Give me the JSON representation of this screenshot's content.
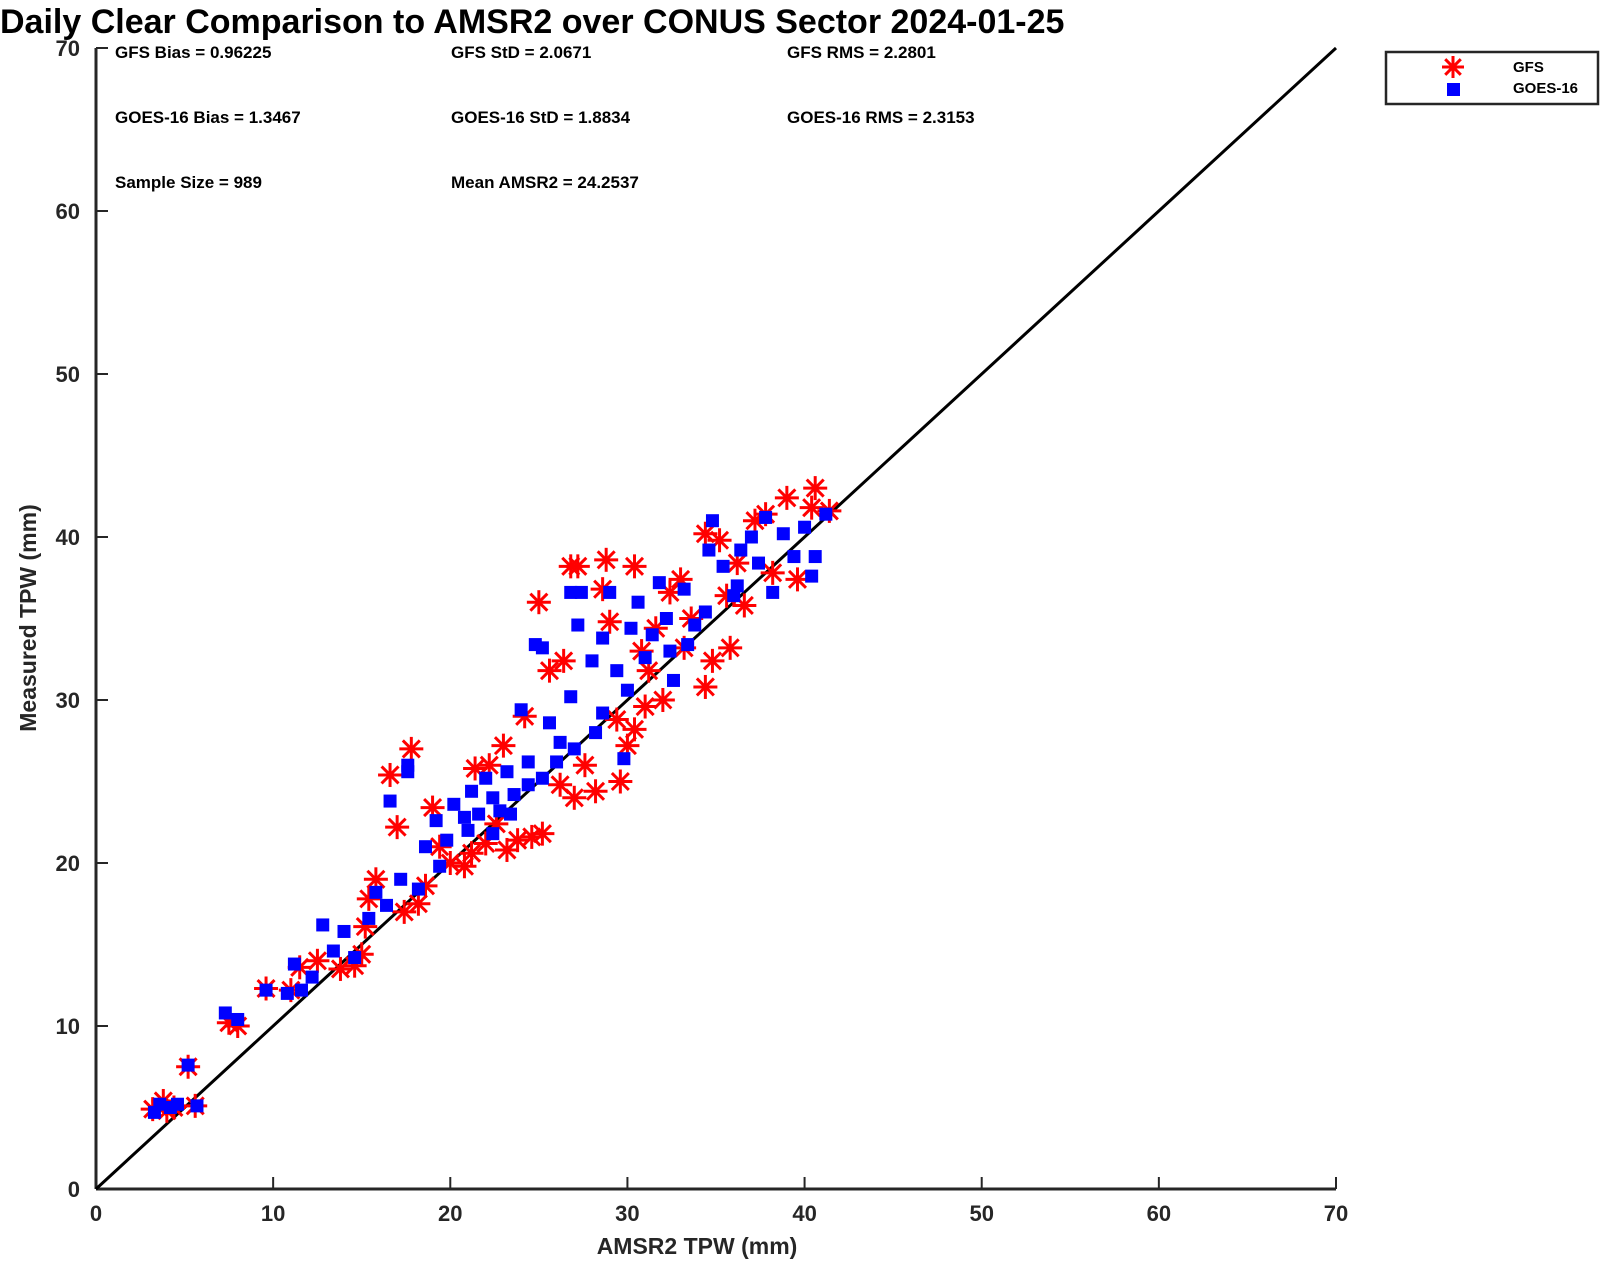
{
  "chart_data": {
    "type": "scatter",
    "title": "Daily Clear Comparison to AMSR2 over CONUS Sector 2024-01-25",
    "xlabel": "AMSR2 TPW (mm)",
    "ylabel": "Measured TPW (mm)",
    "xlim": [
      0,
      70
    ],
    "ylim": [
      0,
      70
    ],
    "xticks": [
      "0",
      "10",
      "20",
      "30",
      "40",
      "50",
      "60",
      "70"
    ],
    "yticks": [
      "0",
      "10",
      "20",
      "30",
      "40",
      "50",
      "60",
      "70"
    ],
    "grid": false,
    "legend_position": "outside-top-right",
    "reference_line": {
      "x": [
        0,
        70
      ],
      "y": [
        0,
        70
      ],
      "color": "#000000"
    },
    "stats": [
      "GFS Bias = 0.96225",
      "GFS StD = 2.0671",
      "GFS RMS = 2.2801",
      "GOES-16 Bias = 1.3467",
      "GOES-16 StD = 1.8834",
      "GOES-16 RMS = 2.3153",
      "Sample Size = 989",
      "Mean AMSR2 = 24.2537"
    ],
    "series": [
      {
        "name": "GFS",
        "marker": "asterisk",
        "color": "#ff0000",
        "points": [
          [
            3.2,
            4.9
          ],
          [
            3.8,
            5.4
          ],
          [
            4.4,
            5.0
          ],
          [
            5.2,
            7.5
          ],
          [
            5.6,
            5.1
          ],
          [
            4.0,
            4.8
          ],
          [
            7.5,
            10.2
          ],
          [
            8.0,
            10.0
          ],
          [
            9.6,
            12.3
          ],
          [
            11.0,
            12.2
          ],
          [
            11.5,
            13.6
          ],
          [
            12.5,
            14.0
          ],
          [
            13.8,
            13.5
          ],
          [
            14.6,
            13.7
          ],
          [
            15.0,
            14.4
          ],
          [
            15.2,
            16.1
          ],
          [
            15.4,
            17.8
          ],
          [
            15.8,
            19.0
          ],
          [
            16.6,
            25.4
          ],
          [
            17.0,
            22.2
          ],
          [
            17.8,
            27.0
          ],
          [
            17.4,
            17.0
          ],
          [
            18.2,
            17.5
          ],
          [
            18.6,
            18.6
          ],
          [
            19.4,
            21.0
          ],
          [
            20.0,
            20.0
          ],
          [
            20.8,
            19.8
          ],
          [
            21.2,
            20.6
          ],
          [
            21.4,
            25.8
          ],
          [
            22.0,
            21.2
          ],
          [
            22.6,
            22.4
          ],
          [
            23.2,
            20.8
          ],
          [
            23.8,
            21.4
          ],
          [
            24.6,
            21.6
          ],
          [
            25.2,
            21.8
          ],
          [
            24.2,
            29.0
          ],
          [
            25.0,
            36.0
          ],
          [
            25.6,
            31.8
          ],
          [
            26.4,
            32.4
          ],
          [
            26.8,
            38.2
          ],
          [
            27.2,
            38.2
          ],
          [
            27.6,
            26.0
          ],
          [
            28.2,
            24.4
          ],
          [
            28.8,
            38.6
          ],
          [
            28.6,
            36.8
          ],
          [
            29.0,
            34.8
          ],
          [
            29.6,
            25.0
          ],
          [
            30.0,
            27.2
          ],
          [
            30.4,
            28.2
          ],
          [
            30.4,
            38.2
          ],
          [
            30.8,
            33.0
          ],
          [
            31.6,
            34.4
          ],
          [
            32.0,
            30.0
          ],
          [
            32.4,
            36.6
          ],
          [
            33.2,
            33.2
          ],
          [
            33.6,
            35.0
          ],
          [
            34.4,
            30.8
          ],
          [
            34.8,
            32.4
          ],
          [
            34.4,
            40.2
          ],
          [
            35.2,
            39.8
          ],
          [
            35.8,
            33.2
          ],
          [
            36.6,
            35.8
          ],
          [
            37.2,
            41.0
          ],
          [
            37.8,
            41.4
          ],
          [
            38.2,
            37.8
          ],
          [
            39.0,
            42.4
          ],
          [
            39.6,
            37.4
          ],
          [
            40.4,
            41.8
          ],
          [
            40.6,
            43.0
          ],
          [
            41.4,
            41.6
          ],
          [
            36.2,
            38.4
          ],
          [
            33.0,
            37.4
          ],
          [
            31.2,
            31.8
          ],
          [
            26.2,
            24.8
          ],
          [
            27.0,
            24.0
          ],
          [
            19.0,
            23.4
          ],
          [
            22.2,
            26.0
          ],
          [
            23.0,
            27.2
          ],
          [
            29.4,
            28.8
          ],
          [
            31.0,
            29.6
          ],
          [
            35.6,
            36.4
          ]
        ]
      },
      {
        "name": "GOES-16",
        "marker": "square",
        "color": "#0000ff",
        "points": [
          [
            3.3,
            4.7
          ],
          [
            3.6,
            5.2
          ],
          [
            4.2,
            5.0
          ],
          [
            4.6,
            5.2
          ],
          [
            5.2,
            7.6
          ],
          [
            5.7,
            5.1
          ],
          [
            7.3,
            10.8
          ],
          [
            8.0,
            10.4
          ],
          [
            9.6,
            12.2
          ],
          [
            10.8,
            12.0
          ],
          [
            11.2,
            13.8
          ],
          [
            11.6,
            12.2
          ],
          [
            12.2,
            13.0
          ],
          [
            12.8,
            16.2
          ],
          [
            13.4,
            14.6
          ],
          [
            14.0,
            15.8
          ],
          [
            14.6,
            14.2
          ],
          [
            15.4,
            16.6
          ],
          [
            15.8,
            18.2
          ],
          [
            16.4,
            17.4
          ],
          [
            16.6,
            23.8
          ],
          [
            17.2,
            19.0
          ],
          [
            17.6,
            26.0
          ],
          [
            17.6,
            25.6
          ],
          [
            18.2,
            18.4
          ],
          [
            18.6,
            21.0
          ],
          [
            19.2,
            22.6
          ],
          [
            19.8,
            21.4
          ],
          [
            20.2,
            23.6
          ],
          [
            20.8,
            22.8
          ],
          [
            21.2,
            24.4
          ],
          [
            21.6,
            23.0
          ],
          [
            22.0,
            25.2
          ],
          [
            22.4,
            24.0
          ],
          [
            22.8,
            23.2
          ],
          [
            23.2,
            25.6
          ],
          [
            23.6,
            24.2
          ],
          [
            24.0,
            29.4
          ],
          [
            24.4,
            26.2
          ],
          [
            24.8,
            33.4
          ],
          [
            25.2,
            33.2
          ],
          [
            25.6,
            28.6
          ],
          [
            26.2,
            27.4
          ],
          [
            26.8,
            30.2
          ],
          [
            26.8,
            36.6
          ],
          [
            27.4,
            36.6
          ],
          [
            27.2,
            34.6
          ],
          [
            28.0,
            32.4
          ],
          [
            28.6,
            33.8
          ],
          [
            29.0,
            36.6
          ],
          [
            29.4,
            31.8
          ],
          [
            29.8,
            26.4
          ],
          [
            30.2,
            34.4
          ],
          [
            30.6,
            36.0
          ],
          [
            31.0,
            32.6
          ],
          [
            31.4,
            34.0
          ],
          [
            31.8,
            37.2
          ],
          [
            32.2,
            35.0
          ],
          [
            32.6,
            31.2
          ],
          [
            33.2,
            36.8
          ],
          [
            33.8,
            34.6
          ],
          [
            34.4,
            35.4
          ],
          [
            34.6,
            39.2
          ],
          [
            34.8,
            41.0
          ],
          [
            35.4,
            38.2
          ],
          [
            36.0,
            36.4
          ],
          [
            36.4,
            39.2
          ],
          [
            37.0,
            40.0
          ],
          [
            37.4,
            38.4
          ],
          [
            37.8,
            41.2
          ],
          [
            38.2,
            36.6
          ],
          [
            38.8,
            40.2
          ],
          [
            39.4,
            38.8
          ],
          [
            40.0,
            40.6
          ],
          [
            40.6,
            38.8
          ],
          [
            41.2,
            41.4
          ],
          [
            40.4,
            37.6
          ],
          [
            36.2,
            37.0
          ],
          [
            33.4,
            33.4
          ],
          [
            28.6,
            29.2
          ],
          [
            27.0,
            27.0
          ],
          [
            22.4,
            21.8
          ],
          [
            25.2,
            25.2
          ],
          [
            30.0,
            30.6
          ],
          [
            19.4,
            19.8
          ],
          [
            21.0,
            22.0
          ],
          [
            23.4,
            23.0
          ],
          [
            24.4,
            24.8
          ],
          [
            26.0,
            26.2
          ],
          [
            28.2,
            28.0
          ],
          [
            32.4,
            33.0
          ]
        ]
      }
    ]
  },
  "legend": {
    "items": [
      {
        "label": "GFS",
        "color": "#ff0000",
        "marker": "asterisk"
      },
      {
        "label": "GOES-16",
        "color": "#0000ff",
        "marker": "square"
      }
    ]
  }
}
